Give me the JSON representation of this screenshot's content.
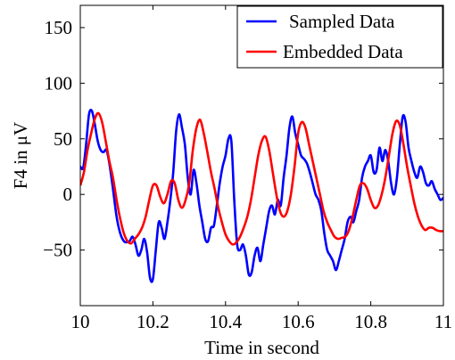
{
  "chart_data": {
    "type": "line",
    "xlabel": "Time in second",
    "ylabel": "F4 in μV",
    "xlim": [
      10,
      11
    ],
    "ylim": [
      -100,
      170
    ],
    "xticks": [
      10,
      10.2,
      10.4,
      10.6,
      10.8,
      11
    ],
    "yticks": [
      -50,
      0,
      50,
      100,
      150
    ],
    "grid": false,
    "legend_position": "top-right",
    "series": [
      {
        "name": "Sampled Data",
        "color": "#0000ff",
        "x": [
          10.0,
          10.008,
          10.016,
          10.024,
          10.032,
          10.04,
          10.048,
          10.056,
          10.064,
          10.072,
          10.08,
          10.09,
          10.1,
          10.11,
          10.12,
          10.128,
          10.136,
          10.144,
          10.152,
          10.16,
          10.168,
          10.176,
          10.184,
          10.192,
          10.2,
          10.208,
          10.216,
          10.224,
          10.232,
          10.24,
          10.248,
          10.256,
          10.264,
          10.272,
          10.28,
          10.288,
          10.296,
          10.304,
          10.312,
          10.32,
          10.328,
          10.336,
          10.344,
          10.352,
          10.36,
          10.368,
          10.376,
          10.384,
          10.392,
          10.4,
          10.408,
          10.416,
          10.424,
          10.432,
          10.44,
          10.448,
          10.456,
          10.464,
          10.472,
          10.48,
          10.488,
          10.496,
          10.504,
          10.512,
          10.52,
          10.528,
          10.536,
          10.544,
          10.552,
          10.56,
          10.568,
          10.576,
          10.584,
          10.592,
          10.6,
          10.608,
          10.616,
          10.624,
          10.632,
          10.64,
          10.648,
          10.656,
          10.664,
          10.672,
          10.68,
          10.688,
          10.696,
          10.704,
          10.712,
          10.72,
          10.728,
          10.736,
          10.744,
          10.752,
          10.76,
          10.768,
          10.776,
          10.784,
          10.792,
          10.8,
          10.808,
          10.816,
          10.824,
          10.832,
          10.84,
          10.848,
          10.856,
          10.864,
          10.872,
          10.88,
          10.888,
          10.896,
          10.904,
          10.912,
          10.92,
          10.928,
          10.936,
          10.944,
          10.952,
          10.96,
          10.968,
          10.976,
          10.984,
          10.992,
          11.0
        ],
        "values": [
          25,
          24,
          45,
          72,
          75,
          63,
          48,
          40,
          38,
          40,
          28,
          5,
          -20,
          -35,
          -42,
          -43,
          -42,
          -38,
          -45,
          -55,
          -50,
          -40,
          -52,
          -75,
          -76,
          -50,
          -25,
          -30,
          -40,
          -25,
          -5,
          20,
          57,
          72,
          60,
          45,
          15,
          0,
          22,
          10,
          -10,
          -25,
          -40,
          -42,
          -30,
          -28,
          -10,
          10,
          25,
          35,
          50,
          48,
          -5,
          -45,
          -50,
          -45,
          -55,
          -72,
          -70,
          -55,
          -48,
          -60,
          -45,
          -30,
          -15,
          -10,
          -18,
          -5,
          -10,
          15,
          35,
          60,
          70,
          55,
          45,
          35,
          32,
          28,
          20,
          10,
          0,
          -5,
          -15,
          -35,
          -50,
          -55,
          -60,
          -68,
          -60,
          -50,
          -40,
          -25,
          -20,
          -25,
          -15,
          -5,
          15,
          25,
          30,
          35,
          20,
          22,
          42,
          30,
          40,
          30,
          10,
          0,
          15,
          45,
          70,
          65,
          42,
          30,
          20,
          15,
          25,
          20,
          10,
          8,
          12,
          5,
          0,
          -5,
          -3
        ],
        "interp": "smooth"
      },
      {
        "name": "Embedded Data",
        "color": "#ff0000",
        "x": [
          10.0,
          10.01,
          10.02,
          10.03,
          10.04,
          10.05,
          10.06,
          10.07,
          10.08,
          10.09,
          10.1,
          10.11,
          10.12,
          10.13,
          10.14,
          10.15,
          10.16,
          10.17,
          10.18,
          10.19,
          10.2,
          10.21,
          10.22,
          10.23,
          10.24,
          10.25,
          10.26,
          10.27,
          10.28,
          10.29,
          10.3,
          10.31,
          10.32,
          10.33,
          10.34,
          10.35,
          10.36,
          10.37,
          10.38,
          10.39,
          10.4,
          10.41,
          10.42,
          10.43,
          10.44,
          10.45,
          10.46,
          10.47,
          10.48,
          10.49,
          10.5,
          10.51,
          10.52,
          10.53,
          10.54,
          10.55,
          10.56,
          10.57,
          10.58,
          10.59,
          10.6,
          10.61,
          10.62,
          10.63,
          10.64,
          10.65,
          10.66,
          10.67,
          10.68,
          10.69,
          10.7,
          10.71,
          10.72,
          10.73,
          10.74,
          10.75,
          10.76,
          10.77,
          10.78,
          10.79,
          10.8,
          10.81,
          10.82,
          10.83,
          10.84,
          10.85,
          10.86,
          10.87,
          10.88,
          10.89,
          10.9,
          10.91,
          10.92,
          10.93,
          10.94,
          10.95,
          10.96,
          10.97,
          10.98,
          10.99,
          11.0
        ],
        "values": [
          8,
          20,
          40,
          55,
          68,
          73,
          65,
          48,
          30,
          15,
          -5,
          -22,
          -35,
          -42,
          -44,
          -40,
          -36,
          -30,
          -20,
          -5,
          8,
          8,
          -2,
          -8,
          0,
          12,
          10,
          -5,
          -12,
          -5,
          10,
          40,
          60,
          67,
          55,
          38,
          20,
          5,
          -12,
          -25,
          -36,
          -42,
          -45,
          -43,
          -38,
          -30,
          -20,
          -5,
          15,
          35,
          48,
          52,
          40,
          20,
          0,
          -15,
          -20,
          -15,
          0,
          25,
          55,
          65,
          60,
          45,
          30,
          15,
          0,
          -15,
          -25,
          -32,
          -38,
          -40,
          -39,
          -38,
          -32,
          -20,
          -5,
          8,
          10,
          5,
          -5,
          -12,
          -10,
          0,
          15,
          35,
          55,
          66,
          62,
          45,
          25,
          8,
          -8,
          -20,
          -28,
          -32,
          -30,
          -30,
          -32,
          -33,
          -33
        ],
        "interp": "smooth"
      }
    ]
  }
}
